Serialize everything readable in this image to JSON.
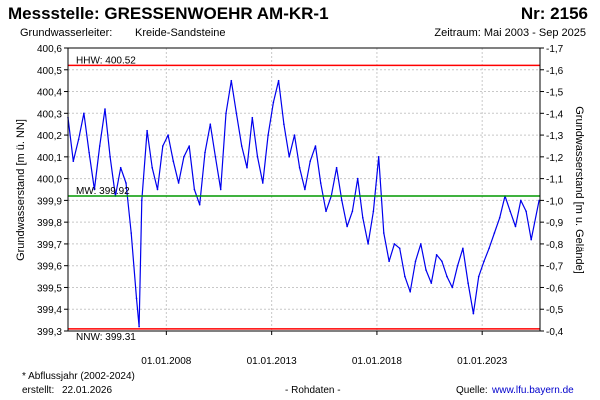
{
  "header": {
    "title": "Messstelle: GRESSENWOEHR  AM-KR-1",
    "number": "Nr: 2156",
    "aquifer_label": "Grundwasserleiter:",
    "aquifer_value": "Kreide-Sandsteine",
    "period": "Zeitraum: Mai 2003 - Sep 2025"
  },
  "footer": {
    "note": "* Abflussjahr (2002-2024)",
    "created_label": "erstellt:",
    "created_date": "22.01.2026",
    "data_note": "- Rohdaten -",
    "source_label": "Quelle:",
    "source_url": "www.lfu.bayern.de"
  },
  "chart_data": {
    "type": "line",
    "ylabel": "Grundwasserstand [m ü. NN]",
    "y2label": "Grundwasserstand [m u. Gelände]",
    "ylim": [
      399.3,
      400.6
    ],
    "yticks": [
      "400,6",
      "400,5",
      "400,4",
      "400,3",
      "400,2",
      "400,1",
      "400,0",
      "399,9",
      "399,8",
      "399,7",
      "399,6",
      "399,5",
      "399,4",
      "399,3"
    ],
    "y2ticks": [
      "-1,7",
      "-1,6",
      "-1,5",
      "-1,4",
      "-1,3",
      "-1,2",
      "-1,1",
      "-1,0",
      "-0,9",
      "-0,8",
      "-0,7",
      "-0,6",
      "-0,5",
      "-0,4"
    ],
    "xlim": [
      "2003-05-01",
      "2025-09-30"
    ],
    "xticks": [
      {
        "date": "2008-01-01",
        "label": "01.01.2008"
      },
      {
        "date": "2013-01-01",
        "label": "01.01.2013"
      },
      {
        "date": "2018-01-01",
        "label": "01.01.2018"
      },
      {
        "date": "2023-01-01",
        "label": "01.01.2023"
      }
    ],
    "grid": true,
    "reference_lines": [
      {
        "label": "HHW: 400.52",
        "value": 400.52,
        "color": "#ff0000"
      },
      {
        "label": "MW: 399.92",
        "value": 399.92,
        "color": "#009900"
      },
      {
        "label": "NNW: 399.31",
        "value": 399.31,
        "color": "#ff0000"
      }
    ],
    "series": [
      {
        "color": "#0000ee",
        "x": [
          "2003-05-01",
          "2003-08-01",
          "2003-11-01",
          "2004-02-01",
          "2004-05-01",
          "2004-08-01",
          "2004-11-01",
          "2005-02-01",
          "2005-05-01",
          "2005-08-01",
          "2005-11-01",
          "2006-02-01",
          "2006-05-01",
          "2006-08-01",
          "2006-09-15",
          "2006-11-01",
          "2007-02-01",
          "2007-05-01",
          "2007-08-01",
          "2007-11-01",
          "2008-02-01",
          "2008-05-01",
          "2008-08-01",
          "2008-11-01",
          "2009-02-01",
          "2009-05-01",
          "2009-08-01",
          "2009-11-01",
          "2010-02-01",
          "2010-05-01",
          "2010-08-01",
          "2010-11-01",
          "2011-02-01",
          "2011-05-01",
          "2011-08-01",
          "2011-11-01",
          "2012-02-01",
          "2012-05-01",
          "2012-08-01",
          "2012-11-01",
          "2013-02-01",
          "2013-05-01",
          "2013-08-01",
          "2013-11-01",
          "2014-02-01",
          "2014-05-01",
          "2014-08-01",
          "2014-11-01",
          "2015-02-01",
          "2015-05-01",
          "2015-08-01",
          "2015-11-01",
          "2016-02-01",
          "2016-05-01",
          "2016-08-01",
          "2016-11-01",
          "2017-02-01",
          "2017-05-01",
          "2017-08-01",
          "2017-11-01",
          "2018-02-01",
          "2018-05-01",
          "2018-08-01",
          "2018-11-01",
          "2019-02-01",
          "2019-05-01",
          "2019-08-01",
          "2019-11-01",
          "2020-02-01",
          "2020-05-01",
          "2020-08-01",
          "2020-11-01",
          "2021-02-01",
          "2021-05-01",
          "2021-08-01",
          "2021-11-01",
          "2022-02-01",
          "2022-05-01",
          "2022-08-01",
          "2022-11-01",
          "2023-02-01",
          "2023-05-01",
          "2023-08-01",
          "2023-11-01",
          "2024-02-01",
          "2024-05-01",
          "2024-08-01",
          "2024-11-01",
          "2025-02-01",
          "2025-05-01",
          "2025-09-15"
        ],
        "y": [
          400.28,
          400.08,
          400.18,
          400.3,
          400.12,
          399.95,
          400.15,
          400.32,
          400.1,
          399.92,
          400.05,
          399.98,
          399.75,
          399.45,
          399.32,
          399.9,
          400.22,
          400.05,
          399.95,
          400.15,
          400.2,
          400.08,
          399.98,
          400.1,
          400.15,
          399.95,
          399.88,
          400.12,
          400.25,
          400.1,
          399.95,
          400.3,
          400.45,
          400.3,
          400.15,
          400.05,
          400.28,
          400.1,
          399.98,
          400.2,
          400.35,
          400.45,
          400.25,
          400.1,
          400.2,
          400.05,
          399.95,
          400.08,
          400.15,
          399.98,
          399.85,
          399.92,
          400.05,
          399.9,
          399.78,
          399.85,
          400.0,
          399.82,
          399.7,
          399.85,
          400.1,
          399.75,
          399.62,
          399.7,
          399.68,
          399.55,
          399.48,
          399.62,
          399.7,
          399.58,
          399.52,
          399.65,
          399.62,
          399.55,
          399.5,
          399.6,
          399.68,
          399.52,
          399.38,
          399.55,
          399.62,
          399.68,
          399.75,
          399.82,
          399.92,
          399.85,
          399.78,
          399.9,
          399.85,
          399.72,
          399.9
        ]
      }
    ]
  }
}
